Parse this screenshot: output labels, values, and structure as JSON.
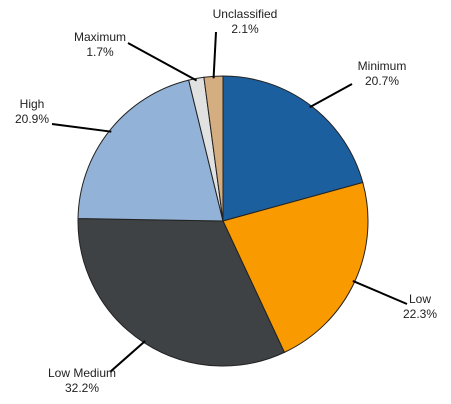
{
  "chart_data": {
    "type": "pie",
    "categories": [
      "Minimum",
      "Low",
      "Low Medium",
      "High",
      "Maximum",
      "Unclassified"
    ],
    "values": [
      20.7,
      22.3,
      32.2,
      20.9,
      1.7,
      2.1
    ],
    "value_labels": [
      "20.7%",
      "22.3%",
      "32.2%",
      "20.9%",
      "1.7%",
      "2.1%"
    ],
    "colors": [
      "#1c5f9f",
      "#f89a00",
      "#3e4245",
      "#93b2d7",
      "#e1e1e1",
      "#d4ad80"
    ]
  }
}
